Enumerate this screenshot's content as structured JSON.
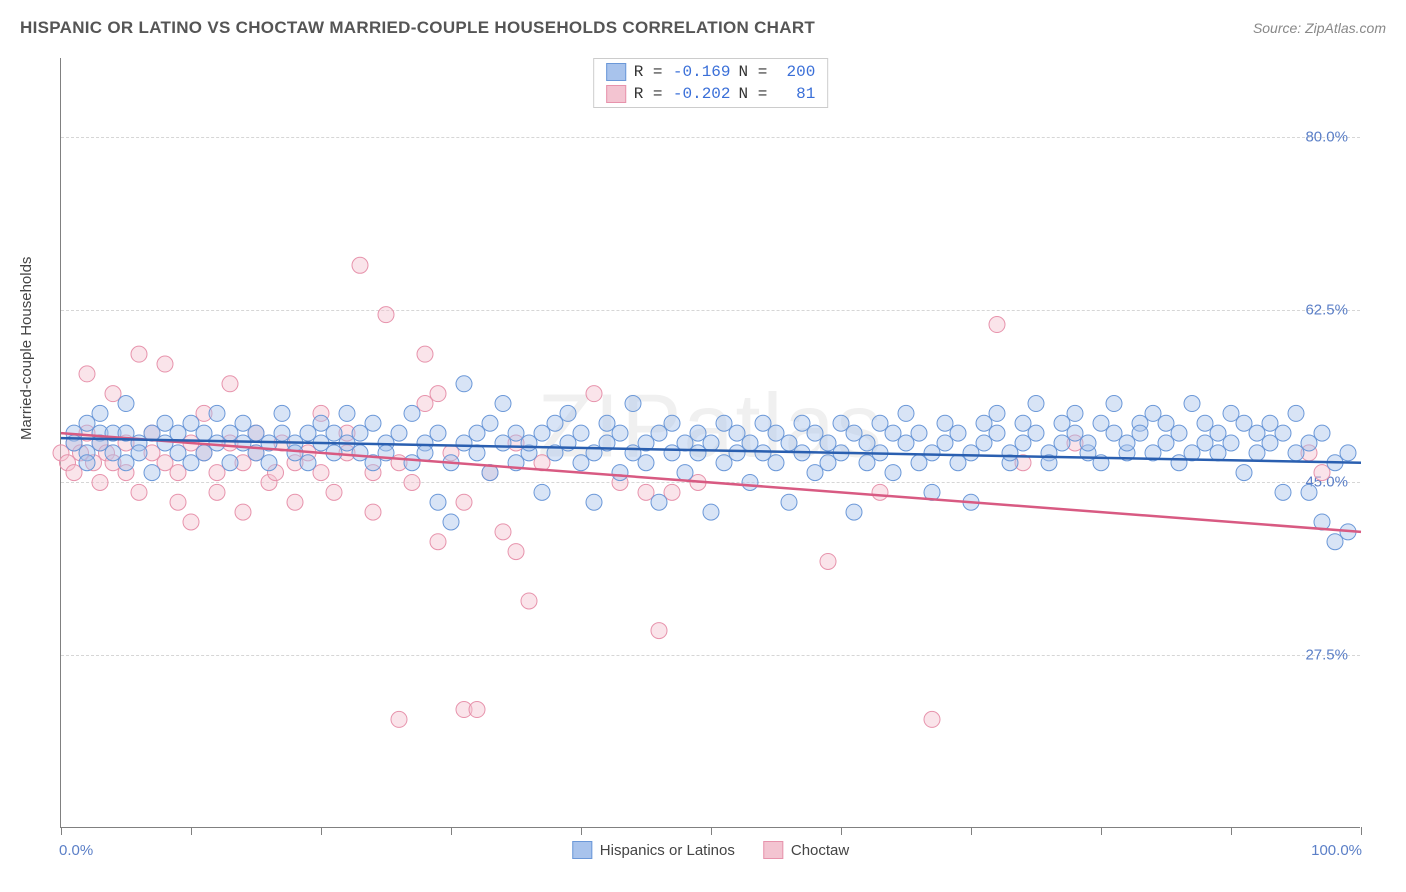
{
  "title": "HISPANIC OR LATINO VS CHOCTAW MARRIED-COUPLE HOUSEHOLDS CORRELATION CHART",
  "source": "Source: ZipAtlas.com",
  "watermark": "ZIPatlas",
  "ylabel": "Married-couple Households",
  "chart": {
    "type": "scatter",
    "xlim": [
      0,
      100
    ],
    "ylim": [
      10,
      88
    ],
    "yticks": [
      27.5,
      45.0,
      62.5,
      80.0
    ],
    "ytick_labels": [
      "27.5%",
      "45.0%",
      "62.5%",
      "80.0%"
    ],
    "xticks": [
      0,
      10,
      20,
      30,
      40,
      50,
      60,
      70,
      80,
      90,
      100
    ],
    "xlabel_min": "0.0%",
    "xlabel_max": "100.0%",
    "background_color": "#ffffff",
    "grid_color": "#d6d6d6",
    "marker_radius": 8,
    "marker_opacity": 0.45,
    "line_width": 2.5,
    "series": [
      {
        "name": "Hispanics or Latinos",
        "color_fill": "#a8c3ec",
        "color_stroke": "#6b98d8",
        "line_color": "#2a5fb0",
        "R": "-0.169",
        "N": "200",
        "trend": {
          "x1": 0,
          "y1": 49.5,
          "x2": 100,
          "y2": 47.0
        },
        "points": [
          [
            1,
            50
          ],
          [
            1,
            49
          ],
          [
            2,
            48
          ],
          [
            2,
            51
          ],
          [
            2,
            47
          ],
          [
            3,
            50
          ],
          [
            3,
            49
          ],
          [
            3,
            52
          ],
          [
            4,
            50
          ],
          [
            4,
            48
          ],
          [
            5,
            47
          ],
          [
            5,
            50
          ],
          [
            5,
            53
          ],
          [
            6,
            49
          ],
          [
            6,
            48
          ],
          [
            7,
            50
          ],
          [
            7,
            46
          ],
          [
            8,
            51
          ],
          [
            8,
            49
          ],
          [
            9,
            50
          ],
          [
            9,
            48
          ],
          [
            10,
            47
          ],
          [
            10,
            51
          ],
          [
            11,
            50
          ],
          [
            11,
            48
          ],
          [
            12,
            49
          ],
          [
            12,
            52
          ],
          [
            13,
            50
          ],
          [
            13,
            47
          ],
          [
            14,
            49
          ],
          [
            14,
            51
          ],
          [
            15,
            48
          ],
          [
            15,
            50
          ],
          [
            16,
            49
          ],
          [
            16,
            47
          ],
          [
            17,
            50
          ],
          [
            17,
            52
          ],
          [
            18,
            49
          ],
          [
            18,
            48
          ],
          [
            19,
            50
          ],
          [
            19,
            47
          ],
          [
            20,
            51
          ],
          [
            20,
            49
          ],
          [
            21,
            48
          ],
          [
            21,
            50
          ],
          [
            22,
            49
          ],
          [
            22,
            52
          ],
          [
            23,
            48
          ],
          [
            23,
            50
          ],
          [
            24,
            47
          ],
          [
            24,
            51
          ],
          [
            25,
            49
          ],
          [
            25,
            48
          ],
          [
            26,
            50
          ],
          [
            27,
            47
          ],
          [
            27,
            52
          ],
          [
            28,
            49
          ],
          [
            28,
            48
          ],
          [
            29,
            50
          ],
          [
            29,
            43
          ],
          [
            30,
            41
          ],
          [
            30,
            47
          ],
          [
            31,
            55
          ],
          [
            31,
            49
          ],
          [
            32,
            48
          ],
          [
            32,
            50
          ],
          [
            33,
            51
          ],
          [
            33,
            46
          ],
          [
            34,
            49
          ],
          [
            34,
            53
          ],
          [
            35,
            47
          ],
          [
            35,
            50
          ],
          [
            36,
            48
          ],
          [
            36,
            49
          ],
          [
            37,
            50
          ],
          [
            37,
            44
          ],
          [
            38,
            51
          ],
          [
            38,
            48
          ],
          [
            39,
            49
          ],
          [
            39,
            52
          ],
          [
            40,
            47
          ],
          [
            40,
            50
          ],
          [
            41,
            48
          ],
          [
            41,
            43
          ],
          [
            42,
            49
          ],
          [
            42,
            51
          ],
          [
            43,
            46
          ],
          [
            43,
            50
          ],
          [
            44,
            48
          ],
          [
            44,
            53
          ],
          [
            45,
            49
          ],
          [
            45,
            47
          ],
          [
            46,
            50
          ],
          [
            46,
            43
          ],
          [
            47,
            48
          ],
          [
            47,
            51
          ],
          [
            48,
            49
          ],
          [
            48,
            46
          ],
          [
            49,
            50
          ],
          [
            49,
            48
          ],
          [
            50,
            42
          ],
          [
            50,
            49
          ],
          [
            51,
            47
          ],
          [
            51,
            51
          ],
          [
            52,
            48
          ],
          [
            52,
            50
          ],
          [
            53,
            49
          ],
          [
            53,
            45
          ],
          [
            54,
            48
          ],
          [
            54,
            51
          ],
          [
            55,
            47
          ],
          [
            55,
            50
          ],
          [
            56,
            49
          ],
          [
            56,
            43
          ],
          [
            57,
            48
          ],
          [
            57,
            51
          ],
          [
            58,
            50
          ],
          [
            58,
            46
          ],
          [
            59,
            49
          ],
          [
            59,
            47
          ],
          [
            60,
            48
          ],
          [
            60,
            51
          ],
          [
            61,
            42
          ],
          [
            61,
            50
          ],
          [
            62,
            49
          ],
          [
            62,
            47
          ],
          [
            63,
            48
          ],
          [
            63,
            51
          ],
          [
            64,
            50
          ],
          [
            64,
            46
          ],
          [
            65,
            49
          ],
          [
            65,
            52
          ],
          [
            66,
            47
          ],
          [
            66,
            50
          ],
          [
            67,
            48
          ],
          [
            67,
            44
          ],
          [
            68,
            51
          ],
          [
            68,
            49
          ],
          [
            69,
            50
          ],
          [
            69,
            47
          ],
          [
            70,
            43
          ],
          [
            70,
            48
          ],
          [
            71,
            51
          ],
          [
            71,
            49
          ],
          [
            72,
            50
          ],
          [
            72,
            52
          ],
          [
            73,
            47
          ],
          [
            73,
            48
          ],
          [
            74,
            51
          ],
          [
            74,
            49
          ],
          [
            75,
            50
          ],
          [
            75,
            53
          ],
          [
            76,
            48
          ],
          [
            76,
            47
          ],
          [
            77,
            49
          ],
          [
            77,
            51
          ],
          [
            78,
            50
          ],
          [
            78,
            52
          ],
          [
            79,
            48
          ],
          [
            79,
            49
          ],
          [
            80,
            51
          ],
          [
            80,
            47
          ],
          [
            81,
            50
          ],
          [
            81,
            53
          ],
          [
            82,
            48
          ],
          [
            82,
            49
          ],
          [
            83,
            51
          ],
          [
            83,
            50
          ],
          [
            84,
            52
          ],
          [
            84,
            48
          ],
          [
            85,
            49
          ],
          [
            85,
            51
          ],
          [
            86,
            47
          ],
          [
            86,
            50
          ],
          [
            87,
            48
          ],
          [
            87,
            53
          ],
          [
            88,
            51
          ],
          [
            88,
            49
          ],
          [
            89,
            50
          ],
          [
            89,
            48
          ],
          [
            90,
            52
          ],
          [
            90,
            49
          ],
          [
            91,
            46
          ],
          [
            91,
            51
          ],
          [
            92,
            48
          ],
          [
            92,
            50
          ],
          [
            93,
            49
          ],
          [
            93,
            51
          ],
          [
            94,
            50
          ],
          [
            94,
            44
          ],
          [
            95,
            48
          ],
          [
            95,
            52
          ],
          [
            96,
            49
          ],
          [
            96,
            44
          ],
          [
            97,
            41
          ],
          [
            97,
            50
          ],
          [
            98,
            47
          ],
          [
            98,
            39
          ],
          [
            99,
            48
          ],
          [
            99,
            40
          ]
        ]
      },
      {
        "name": "Choctaw",
        "color_fill": "#f3c4d1",
        "color_stroke": "#e793ac",
        "line_color": "#d85a82",
        "R": "-0.202",
        "N": "81",
        "trend": {
          "x1": 0,
          "y1": 50.0,
          "x2": 100,
          "y2": 40.0
        },
        "points": [
          [
            0,
            48
          ],
          [
            0.5,
            47
          ],
          [
            1,
            49
          ],
          [
            1,
            46
          ],
          [
            1.5,
            48
          ],
          [
            2,
            56
          ],
          [
            2,
            50
          ],
          [
            2.5,
            47
          ],
          [
            3,
            49
          ],
          [
            3,
            45
          ],
          [
            3.5,
            48
          ],
          [
            4,
            54
          ],
          [
            4,
            47
          ],
          [
            5,
            46
          ],
          [
            5,
            49
          ],
          [
            6,
            58
          ],
          [
            6,
            44
          ],
          [
            7,
            48
          ],
          [
            7,
            50
          ],
          [
            8,
            47
          ],
          [
            8,
            57
          ],
          [
            9,
            46
          ],
          [
            9,
            43
          ],
          [
            10,
            49
          ],
          [
            10,
            41
          ],
          [
            11,
            48
          ],
          [
            11,
            52
          ],
          [
            12,
            46
          ],
          [
            12,
            44
          ],
          [
            13,
            49
          ],
          [
            13,
            55
          ],
          [
            14,
            47
          ],
          [
            14,
            42
          ],
          [
            15,
            48
          ],
          [
            15,
            50
          ],
          [
            16,
            45
          ],
          [
            16.5,
            46
          ],
          [
            17,
            49
          ],
          [
            18,
            43
          ],
          [
            18,
            47
          ],
          [
            19,
            48
          ],
          [
            20,
            46
          ],
          [
            20,
            52
          ],
          [
            21,
            44
          ],
          [
            22,
            48
          ],
          [
            22,
            50
          ],
          [
            23,
            67
          ],
          [
            24,
            46
          ],
          [
            24,
            42
          ],
          [
            25,
            62
          ],
          [
            26,
            47
          ],
          [
            26,
            21
          ],
          [
            27,
            45
          ],
          [
            28,
            53
          ],
          [
            28,
            58
          ],
          [
            29,
            54
          ],
          [
            29,
            39
          ],
          [
            30,
            48
          ],
          [
            31,
            22
          ],
          [
            31,
            43
          ],
          [
            32,
            22
          ],
          [
            33,
            46
          ],
          [
            34,
            40
          ],
          [
            35,
            49
          ],
          [
            35,
            38
          ],
          [
            36,
            33
          ],
          [
            37,
            47
          ],
          [
            41,
            54
          ],
          [
            43,
            45
          ],
          [
            46,
            30
          ],
          [
            47,
            44
          ],
          [
            49,
            45
          ],
          [
            59,
            37
          ],
          [
            63,
            44
          ],
          [
            67,
            21
          ],
          [
            72,
            61
          ],
          [
            74,
            47
          ],
          [
            78,
            49
          ],
          [
            96,
            48
          ],
          [
            97,
            46
          ],
          [
            45,
            44
          ]
        ]
      }
    ]
  },
  "colors": {
    "title": "#555555",
    "axis_text": "#444444",
    "tick_text": "#5b7fc7",
    "stat_value": "#3a6fd8"
  }
}
